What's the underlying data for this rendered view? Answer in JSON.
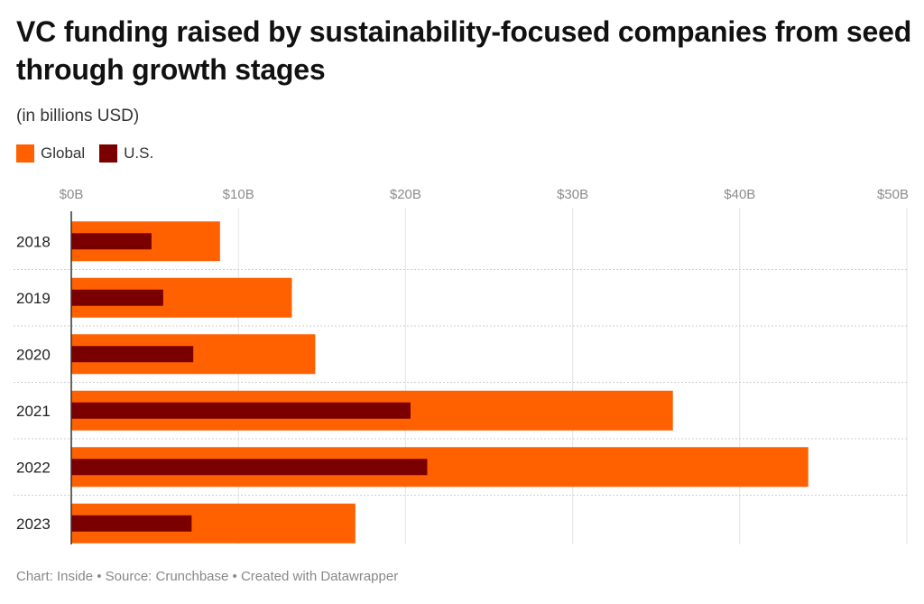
{
  "chart_data": {
    "type": "bar",
    "orientation": "horizontal",
    "title": "VC funding raised by sustainability-focused companies from seed through growth stages",
    "subtitle": "(in billions USD)",
    "categories": [
      "2018",
      "2019",
      "2020",
      "2021",
      "2022",
      "2023"
    ],
    "series": [
      {
        "name": "Global",
        "color": "#ff6100",
        "values": [
          8.9,
          13.2,
          14.6,
          36.0,
          44.1,
          17.0
        ]
      },
      {
        "name": "U.S.",
        "color": "#7a0000",
        "values": [
          4.8,
          5.5,
          7.3,
          20.3,
          21.3,
          7.2
        ]
      }
    ],
    "xlim": [
      0,
      50
    ],
    "xticks": [
      0,
      10,
      20,
      30,
      40,
      50
    ],
    "xtick_labels": [
      "$0B",
      "$10B",
      "$20B",
      "$30B",
      "$40B",
      "$50B"
    ],
    "grid": true,
    "legend_position": "top-left"
  },
  "footer": {
    "text": "Chart: Inside • Source: Crunchbase • Created with Datawrapper"
  }
}
